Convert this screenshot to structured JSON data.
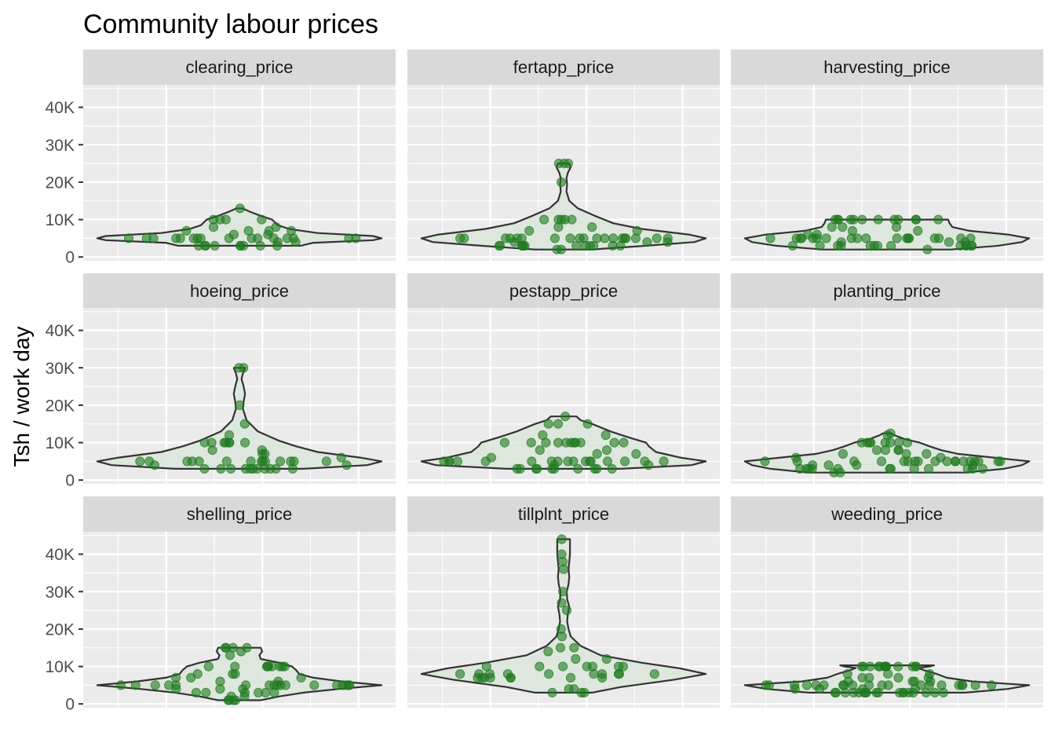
{
  "chart_data": {
    "type": "violin",
    "title": "Community labour prices",
    "xlabel": "",
    "ylabel": "Tsh / work day",
    "ylim": [
      -1000,
      46000
    ],
    "y_ticks": [
      0,
      10000,
      20000,
      30000,
      40000
    ],
    "y_tick_labels": [
      "0",
      "10K",
      "20K",
      "30K",
      "40K"
    ],
    "grid": true,
    "legend": "none",
    "colors": {
      "points": "#1f7a1f",
      "violin_fill": "#dbe6db",
      "violin_line": "#333333",
      "panel_bg": "#ebebeb",
      "strip_bg": "#d9d9d9",
      "grid": "#ffffff"
    },
    "panels": [
      {
        "name": "clearing_price",
        "values": [
          5000,
          5000,
          5000,
          5000,
          5000,
          5000,
          5000,
          5000,
          5000,
          5000,
          5000,
          5000,
          5000,
          5000,
          5000,
          5000,
          3000,
          3000,
          3000,
          3000,
          3000,
          3000,
          3000,
          3000,
          3000,
          7000,
          7000,
          7000,
          7000,
          8000,
          8000,
          10000,
          10000,
          10000,
          10000,
          13000,
          4000,
          4000,
          6000,
          6000
        ],
        "violin": [
          [
            3000,
            0.43
          ],
          [
            3800,
            0.52
          ],
          [
            4500,
            0.94
          ],
          [
            5000,
            1.0
          ],
          [
            5600,
            0.94
          ],
          [
            6400,
            0.55
          ],
          [
            7500,
            0.35
          ],
          [
            8500,
            0.27
          ],
          [
            10000,
            0.23
          ],
          [
            11000,
            0.15
          ],
          [
            12000,
            0.08
          ],
          [
            13000,
            0.02
          ]
        ]
      },
      {
        "name": "fertapp_price",
        "values": [
          5000,
          5000,
          5000,
          5000,
          5000,
          5000,
          5000,
          5000,
          5000,
          5000,
          5000,
          5000,
          5000,
          5000,
          5000,
          5000,
          5000,
          5000,
          5000,
          3000,
          3000,
          3000,
          3000,
          3000,
          3000,
          3000,
          3000,
          3000,
          3000,
          3000,
          3000,
          2000,
          2000,
          4000,
          4000,
          4000,
          7000,
          7000,
          8000,
          8000,
          10000,
          10000,
          10000,
          10000,
          10000,
          20000,
          25000,
          25000,
          25000
        ],
        "violin": [
          [
            2000,
            0.2
          ],
          [
            3000,
            0.58
          ],
          [
            4000,
            0.92
          ],
          [
            5000,
            1.0
          ],
          [
            6000,
            0.88
          ],
          [
            7500,
            0.55
          ],
          [
            9000,
            0.35
          ],
          [
            11000,
            0.22
          ],
          [
            13000,
            0.1
          ],
          [
            15000,
            0.04
          ],
          [
            17500,
            0.02
          ],
          [
            19500,
            0.025
          ],
          [
            21000,
            0.02
          ],
          [
            22500,
            0.03
          ],
          [
            24000,
            0.05
          ],
          [
            25000,
            0.04
          ]
        ]
      },
      {
        "name": "harvesting_price",
        "values": [
          5000,
          5000,
          5000,
          5000,
          5000,
          5000,
          5000,
          5000,
          5000,
          5000,
          5000,
          5000,
          5000,
          5000,
          5000,
          5000,
          5000,
          5000,
          3000,
          3000,
          3000,
          3000,
          3000,
          3000,
          3000,
          3000,
          3000,
          3000,
          3000,
          3000,
          3000,
          2000,
          4000,
          4000,
          4000,
          6000,
          6000,
          7000,
          7000,
          8000,
          8000,
          8000,
          10000,
          10000,
          10000,
          10000,
          10000,
          10000,
          10000,
          10000,
          10000,
          10000,
          10000,
          10000
        ],
        "violin": [
          [
            2000,
            0.45
          ],
          [
            3000,
            0.78
          ],
          [
            4000,
            0.95
          ],
          [
            5000,
            1.0
          ],
          [
            6000,
            0.85
          ],
          [
            7000,
            0.58
          ],
          [
            8000,
            0.46
          ],
          [
            9000,
            0.44
          ],
          [
            10000,
            0.43
          ]
        ]
      },
      {
        "name": "hoeing_price",
        "values": [
          5000,
          5000,
          5000,
          5000,
          5000,
          5000,
          5000,
          5000,
          5000,
          5000,
          5000,
          5000,
          5000,
          5000,
          3000,
          3000,
          3000,
          3000,
          3000,
          3000,
          3000,
          3000,
          3000,
          3000,
          3000,
          4000,
          4000,
          6000,
          7000,
          7000,
          8000,
          8000,
          10000,
          10000,
          10000,
          10000,
          10000,
          10000,
          10000,
          12000,
          15000,
          20000,
          30000,
          30000
        ],
        "violin": [
          [
            3000,
            0.45
          ],
          [
            4000,
            0.9
          ],
          [
            5000,
            1.0
          ],
          [
            6000,
            0.85
          ],
          [
            7500,
            0.55
          ],
          [
            9000,
            0.4
          ],
          [
            10500,
            0.28
          ],
          [
            13000,
            0.13
          ],
          [
            16000,
            0.05
          ],
          [
            19000,
            0.025
          ],
          [
            21000,
            0.03
          ],
          [
            23000,
            0.04
          ],
          [
            25000,
            0.03
          ],
          [
            27000,
            0.015
          ],
          [
            28500,
            0.025
          ],
          [
            30000,
            0.04
          ]
        ]
      },
      {
        "name": "pestapp_price",
        "values": [
          5000,
          5000,
          5000,
          5000,
          5000,
          5000,
          5000,
          5000,
          5000,
          5000,
          5000,
          5000,
          5000,
          5000,
          5000,
          5000,
          5000,
          3000,
          3000,
          3000,
          3000,
          3000,
          3000,
          3000,
          3000,
          3000,
          3000,
          4000,
          4000,
          6000,
          7000,
          7000,
          8000,
          8000,
          10000,
          10000,
          10000,
          10000,
          10000,
          10000,
          10000,
          10000,
          10000,
          10000,
          10000,
          12000,
          12000,
          15000,
          15000,
          15000,
          17000
        ],
        "violin": [
          [
            3000,
            0.4
          ],
          [
            4000,
            0.9
          ],
          [
            5000,
            1.0
          ],
          [
            6000,
            0.82
          ],
          [
            7500,
            0.65
          ],
          [
            9000,
            0.6
          ],
          [
            10000,
            0.58
          ],
          [
            11500,
            0.45
          ],
          [
            13000,
            0.33
          ],
          [
            15000,
            0.2
          ],
          [
            16000,
            0.12
          ],
          [
            17000,
            0.09
          ]
        ]
      },
      {
        "name": "planting_price",
        "values": [
          5000,
          5000,
          5000,
          5000,
          5000,
          5000,
          5000,
          5000,
          5000,
          5000,
          5000,
          5000,
          5000,
          5000,
          5000,
          5000,
          5000,
          5000,
          3000,
          3000,
          3000,
          3000,
          3000,
          3000,
          3000,
          3000,
          3000,
          3000,
          3000,
          3000,
          2000,
          2000,
          4000,
          4000,
          4000,
          4000,
          6000,
          6000,
          7000,
          7000,
          7000,
          8000,
          8000,
          8000,
          8000,
          10000,
          10000,
          10000,
          10000,
          10000,
          10000,
          10000,
          10000,
          12000,
          12500
        ],
        "violin": [
          [
            2000,
            0.55
          ],
          [
            3000,
            0.82
          ],
          [
            4000,
            0.95
          ],
          [
            5000,
            1.0
          ],
          [
            6000,
            0.75
          ],
          [
            7000,
            0.5
          ],
          [
            8000,
            0.38
          ],
          [
            9000,
            0.3
          ],
          [
            10000,
            0.23
          ],
          [
            11000,
            0.12
          ],
          [
            12000,
            0.05
          ],
          [
            12500,
            0.03
          ]
        ]
      },
      {
        "name": "shelling_price",
        "values": [
          5000,
          5000,
          5000,
          5000,
          5000,
          5000,
          5000,
          5000,
          5000,
          5000,
          5000,
          5000,
          5000,
          5000,
          5000,
          5000,
          5000,
          3000,
          3000,
          3000,
          3000,
          3000,
          3000,
          2000,
          2000,
          1000,
          1000,
          1000,
          1000,
          4000,
          4000,
          4000,
          6000,
          6000,
          7000,
          7000,
          7000,
          8000,
          8000,
          8000,
          10000,
          10000,
          10000,
          10000,
          10000,
          10000,
          10000,
          10000,
          10000,
          13000,
          14000,
          15000,
          15000,
          15000,
          15000
        ],
        "violin": [
          [
            1000,
            0.15
          ],
          [
            2000,
            0.28
          ],
          [
            3000,
            0.45
          ],
          [
            4000,
            0.7
          ],
          [
            5000,
            1.0
          ],
          [
            6000,
            0.72
          ],
          [
            7000,
            0.52
          ],
          [
            8000,
            0.42
          ],
          [
            9000,
            0.4
          ],
          [
            10000,
            0.37
          ],
          [
            11000,
            0.28
          ],
          [
            12000,
            0.15
          ],
          [
            13000,
            0.14
          ],
          [
            14000,
            0.16
          ],
          [
            15000,
            0.15
          ]
        ]
      },
      {
        "name": "tillplnt_price",
        "values": [
          8000,
          8000,
          8000,
          8000,
          8000,
          8000,
          8000,
          8000,
          8000,
          8000,
          10000,
          10000,
          10000,
          10000,
          10000,
          10000,
          10000,
          7000,
          7000,
          7000,
          7000,
          7000,
          7000,
          7000,
          7000,
          3000,
          3000,
          3000,
          4000,
          4000,
          12000,
          12000,
          14000,
          15000,
          15000,
          18000,
          20000,
          25000,
          27000,
          30000,
          36000,
          38000,
          40000,
          44000
        ],
        "violin": [
          [
            3000,
            0.2
          ],
          [
            4500,
            0.4
          ],
          [
            6500,
            0.78
          ],
          [
            8000,
            1.0
          ],
          [
            9500,
            0.82
          ],
          [
            11000,
            0.55
          ],
          [
            13000,
            0.26
          ],
          [
            15500,
            0.12
          ],
          [
            18000,
            0.05
          ],
          [
            20000,
            0.035
          ],
          [
            22000,
            0.025
          ],
          [
            24000,
            0.03
          ],
          [
            26000,
            0.04
          ],
          [
            28000,
            0.025
          ],
          [
            30000,
            0.022
          ],
          [
            32000,
            0.035
          ],
          [
            34000,
            0.04
          ],
          [
            36000,
            0.035
          ],
          [
            38000,
            0.04
          ],
          [
            40000,
            0.045
          ],
          [
            42000,
            0.045
          ],
          [
            44000,
            0.045
          ]
        ]
      },
      {
        "name": "weeding_price",
        "values": [
          5000,
          5000,
          5000,
          5000,
          5000,
          5000,
          5000,
          5000,
          5000,
          5000,
          5000,
          5000,
          5000,
          5000,
          5000,
          5000,
          5000,
          5000,
          5000,
          5000,
          3000,
          3000,
          3000,
          3000,
          3000,
          3000,
          3000,
          3000,
          3000,
          3000,
          3000,
          3000,
          3000,
          3000,
          3000,
          3000,
          3000,
          3000,
          4000,
          4000,
          4000,
          4000,
          6000,
          6000,
          6000,
          6000,
          7000,
          7000,
          7000,
          7000,
          8000,
          8000,
          8000,
          10000,
          10000,
          10000,
          10000,
          10000,
          10000,
          10000,
          10000,
          10000,
          10000,
          10000,
          10000,
          10000
        ],
        "violin": [
          [
            3000,
            0.55
          ],
          [
            4000,
            0.85
          ],
          [
            5000,
            1.0
          ],
          [
            6000,
            0.6
          ],
          [
            7000,
            0.42
          ],
          [
            8000,
            0.35
          ],
          [
            9000,
            0.26
          ],
          [
            9600,
            0.22
          ],
          [
            10000,
            0.3
          ],
          [
            10300,
            0.33
          ]
        ]
      }
    ]
  }
}
